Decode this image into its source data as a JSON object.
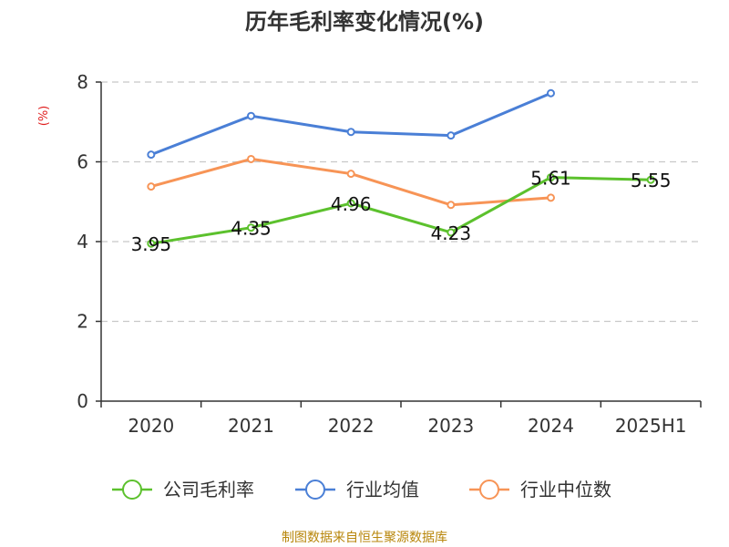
{
  "source": "制图数据来自恒生聚源数据库",
  "chart_data": {
    "type": "line",
    "title": "历年毛利率变化情况(%)",
    "unit_label": "(%)",
    "xlabel": "",
    "ylabel": "",
    "categories": [
      "2020",
      "2021",
      "2022",
      "2023",
      "2024",
      "2025H1"
    ],
    "ylim": [
      0,
      8
    ],
    "yticks": [
      0,
      2,
      4,
      6,
      8
    ],
    "grid": true,
    "legend_position": "bottom",
    "series": [
      {
        "name": "公司毛利率",
        "color": "#5cc12d",
        "values": [
          3.95,
          4.35,
          4.96,
          4.23,
          5.61,
          5.55
        ],
        "labels": [
          "3.95",
          "4.35",
          "4.96",
          "4.23",
          "5.61",
          "5.55"
        ]
      },
      {
        "name": "行业均值",
        "color": "#4a7fd6",
        "values": [
          6.18,
          7.15,
          6.75,
          6.66,
          7.72,
          null
        ]
      },
      {
        "name": "行业中位数",
        "color": "#f79456",
        "values": [
          5.38,
          6.07,
          5.7,
          4.92,
          5.1,
          null
        ]
      }
    ]
  }
}
